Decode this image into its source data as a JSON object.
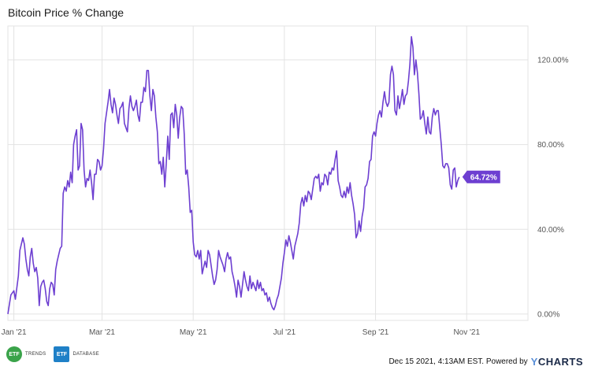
{
  "chart_data": {
    "type": "line",
    "title": "Bitcoin Price % Change",
    "x_tick_labels": [
      "Jan '21",
      "Mar '21",
      "May '21",
      "Jul '21",
      "Sep '21",
      "Nov '21"
    ],
    "x_tick_days": [
      4,
      63,
      124,
      185,
      246,
      307
    ],
    "x_range_days": [
      0,
      348
    ],
    "ylim": [
      -3,
      136
    ],
    "y_ticks": [
      0,
      40,
      80,
      120
    ],
    "y_tick_labels": [
      "0.00%",
      "40.00%",
      "80.00%",
      "120.00%"
    ],
    "grid": true,
    "series": [
      {
        "color": "#6d3fd1",
        "last_value_label": "64.72%",
        "points": [
          [
            0,
            0
          ],
          [
            2,
            9
          ],
          [
            4,
            11
          ],
          [
            5,
            7
          ],
          [
            7,
            18
          ],
          [
            8,
            30
          ],
          [
            10,
            36
          ],
          [
            11,
            33
          ],
          [
            12,
            26
          ],
          [
            13,
            21
          ],
          [
            14,
            18
          ],
          [
            15,
            27
          ],
          [
            16,
            31
          ],
          [
            17,
            24
          ],
          [
            18,
            20
          ],
          [
            19,
            22
          ],
          [
            20,
            17
          ],
          [
            21,
            4
          ],
          [
            22,
            13
          ],
          [
            23,
            15
          ],
          [
            24,
            16
          ],
          [
            25,
            12
          ],
          [
            26,
            6
          ],
          [
            27,
            4
          ],
          [
            28,
            12
          ],
          [
            29,
            15
          ],
          [
            30,
            14
          ],
          [
            31,
            9
          ],
          [
            32,
            21
          ],
          [
            33,
            25
          ],
          [
            34,
            28
          ],
          [
            35,
            31
          ],
          [
            36,
            32
          ],
          [
            37,
            57
          ],
          [
            38,
            60
          ],
          [
            39,
            58
          ],
          [
            40,
            63
          ],
          [
            41,
            60
          ],
          [
            42,
            67
          ],
          [
            43,
            62
          ],
          [
            44,
            80
          ],
          [
            45,
            84
          ],
          [
            46,
            87
          ],
          [
            47,
            68
          ],
          [
            48,
            70
          ],
          [
            49,
            90
          ],
          [
            50,
            87
          ],
          [
            51,
            68
          ],
          [
            52,
            60
          ],
          [
            53,
            64
          ],
          [
            54,
            63
          ],
          [
            55,
            68
          ],
          [
            56,
            62
          ],
          [
            57,
            54
          ],
          [
            58,
            66
          ],
          [
            59,
            66
          ],
          [
            60,
            73
          ],
          [
            61,
            72
          ],
          [
            62,
            68
          ],
          [
            63,
            70
          ],
          [
            64,
            78
          ],
          [
            65,
            90
          ],
          [
            66,
            95
          ],
          [
            67,
            100
          ],
          [
            68,
            106
          ],
          [
            69,
            99
          ],
          [
            70,
            95
          ],
          [
            71,
            102
          ],
          [
            72,
            99
          ],
          [
            73,
            94
          ],
          [
            74,
            90
          ],
          [
            75,
            97
          ],
          [
            76,
            98
          ],
          [
            77,
            100
          ],
          [
            78,
            90
          ],
          [
            79,
            88
          ],
          [
            80,
            86
          ],
          [
            81,
            97
          ],
          [
            82,
            103
          ],
          [
            83,
            98
          ],
          [
            84,
            96
          ],
          [
            85,
            98
          ],
          [
            86,
            101
          ],
          [
            87,
            94
          ],
          [
            88,
            91
          ],
          [
            89,
            100
          ],
          [
            90,
            100
          ],
          [
            91,
            107
          ],
          [
            92,
            105
          ],
          [
            93,
            115
          ],
          [
            94,
            115
          ],
          [
            95,
            103
          ],
          [
            96,
            96
          ],
          [
            97,
            106
          ],
          [
            98,
            103
          ],
          [
            99,
            93
          ],
          [
            100,
            86
          ],
          [
            101,
            71
          ],
          [
            102,
            72
          ],
          [
            103,
            66
          ],
          [
            104,
            74
          ],
          [
            105,
            60
          ],
          [
            106,
            71
          ],
          [
            107,
            84
          ],
          [
            108,
            73
          ],
          [
            109,
            94
          ],
          [
            110,
            95
          ],
          [
            111,
            88
          ],
          [
            112,
            99
          ],
          [
            113,
            94
          ],
          [
            114,
            83
          ],
          [
            115,
            93
          ],
          [
            116,
            98
          ],
          [
            117,
            97
          ],
          [
            118,
            85
          ],
          [
            119,
            66
          ],
          [
            120,
            68
          ],
          [
            121,
            60
          ],
          [
            122,
            48
          ],
          [
            123,
            49
          ],
          [
            124,
            34
          ],
          [
            125,
            28
          ],
          [
            126,
            27
          ],
          [
            127,
            30
          ],
          [
            128,
            26
          ],
          [
            129,
            30
          ],
          [
            130,
            19
          ],
          [
            131,
            22
          ],
          [
            132,
            25
          ],
          [
            133,
            22
          ],
          [
            134,
            30
          ],
          [
            135,
            28
          ],
          [
            136,
            23
          ],
          [
            137,
            18
          ],
          [
            138,
            14
          ],
          [
            139,
            16
          ],
          [
            140,
            21
          ],
          [
            141,
            30
          ],
          [
            142,
            27
          ],
          [
            143,
            25
          ],
          [
            144,
            23
          ],
          [
            145,
            20
          ],
          [
            146,
            26
          ],
          [
            147,
            29
          ],
          [
            148,
            26
          ],
          [
            149,
            27
          ],
          [
            150,
            20
          ],
          [
            151,
            17
          ],
          [
            152,
            13
          ],
          [
            153,
            8
          ],
          [
            154,
            16
          ],
          [
            155,
            13
          ],
          [
            156,
            8
          ],
          [
            157,
            14
          ],
          [
            158,
            20
          ],
          [
            159,
            16
          ],
          [
            160,
            13
          ],
          [
            161,
            11
          ],
          [
            162,
            18
          ],
          [
            163,
            12
          ],
          [
            164,
            15
          ],
          [
            165,
            13
          ],
          [
            166,
            11
          ],
          [
            167,
            16
          ],
          [
            168,
            12
          ],
          [
            169,
            15
          ],
          [
            170,
            11
          ],
          [
            171,
            12
          ],
          [
            172,
            9
          ],
          [
            173,
            10
          ],
          [
            174,
            6
          ],
          [
            175,
            8
          ],
          [
            176,
            5
          ],
          [
            177,
            3
          ],
          [
            178,
            2
          ],
          [
            179,
            4
          ],
          [
            180,
            7
          ],
          [
            181,
            9
          ],
          [
            182,
            13
          ],
          [
            183,
            17
          ],
          [
            184,
            24
          ],
          [
            185,
            29
          ],
          [
            186,
            35
          ],
          [
            187,
            32
          ],
          [
            188,
            37
          ],
          [
            189,
            34
          ],
          [
            190,
            30
          ],
          [
            191,
            26
          ],
          [
            192,
            32
          ],
          [
            193,
            35
          ],
          [
            194,
            38
          ],
          [
            195,
            43
          ],
          [
            196,
            52
          ],
          [
            197,
            55
          ],
          [
            198,
            51
          ],
          [
            199,
            56
          ],
          [
            200,
            53
          ],
          [
            201,
            58
          ],
          [
            202,
            57
          ],
          [
            203,
            54
          ],
          [
            204,
            59
          ],
          [
            205,
            64
          ],
          [
            206,
            65
          ],
          [
            207,
            64
          ],
          [
            208,
            66
          ],
          [
            209,
            58
          ],
          [
            210,
            62
          ],
          [
            211,
            61
          ],
          [
            212,
            66
          ],
          [
            213,
            65
          ],
          [
            214,
            61
          ],
          [
            215,
            67
          ],
          [
            216,
            66
          ],
          [
            217,
            69
          ],
          [
            218,
            68
          ],
          [
            219,
            73
          ],
          [
            220,
            77
          ],
          [
            221,
            63
          ],
          [
            222,
            60
          ],
          [
            223,
            56
          ],
          [
            224,
            55
          ],
          [
            225,
            58
          ],
          [
            226,
            55
          ],
          [
            227,
            60
          ],
          [
            228,
            57
          ],
          [
            229,
            62
          ],
          [
            230,
            56
          ],
          [
            231,
            52
          ],
          [
            232,
            47
          ],
          [
            233,
            36
          ],
          [
            234,
            38
          ],
          [
            235,
            44
          ],
          [
            236,
            39
          ],
          [
            237,
            46
          ],
          [
            238,
            50
          ],
          [
            239,
            60
          ],
          [
            240,
            61
          ],
          [
            241,
            64
          ],
          [
            242,
            72
          ],
          [
            243,
            73
          ],
          [
            244,
            84
          ],
          [
            245,
            86
          ],
          [
            246,
            84
          ],
          [
            247,
            90
          ],
          [
            248,
            94
          ],
          [
            249,
            96
          ],
          [
            250,
            93
          ],
          [
            251,
            100
          ],
          [
            252,
            105
          ],
          [
            253,
            100
          ],
          [
            254,
            98
          ],
          [
            255,
            100
          ],
          [
            256,
            113
          ],
          [
            257,
            117
          ],
          [
            258,
            113
          ],
          [
            259,
            96
          ],
          [
            260,
            94
          ],
          [
            261,
            103
          ],
          [
            262,
            97
          ],
          [
            263,
            101
          ],
          [
            264,
            106
          ],
          [
            265,
            99
          ],
          [
            266,
            103
          ],
          [
            267,
            104
          ],
          [
            268,
            110
          ],
          [
            269,
            118
          ],
          [
            270,
            131
          ],
          [
            271,
            126
          ],
          [
            272,
            113
          ],
          [
            273,
            120
          ],
          [
            274,
            114
          ],
          [
            275,
            104
          ],
          [
            276,
            92
          ],
          [
            277,
            93
          ],
          [
            278,
            96
          ],
          [
            279,
            90
          ],
          [
            280,
            85
          ],
          [
            281,
            93
          ],
          [
            282,
            86
          ],
          [
            283,
            85
          ],
          [
            284,
            93
          ],
          [
            285,
            97
          ],
          [
            286,
            94
          ],
          [
            287,
            96
          ],
          [
            288,
            96
          ],
          [
            289,
            88
          ],
          [
            290,
            80
          ],
          [
            291,
            70
          ],
          [
            292,
            69
          ],
          [
            293,
            71
          ],
          [
            294,
            71
          ],
          [
            295,
            69
          ],
          [
            296,
            61
          ],
          [
            297,
            59
          ],
          [
            298,
            68
          ],
          [
            299,
            69
          ],
          [
            300,
            60
          ],
          [
            301,
            63
          ],
          [
            302,
            64.72
          ]
        ]
      }
    ]
  },
  "footer": {
    "badge1": "ETF",
    "badge1_sub": "TRENDS",
    "badge2": "ETF",
    "badge2_sub": "DATABASE",
    "timestamp": "Dec 15 2021, 4:13AM EST. Powered by",
    "brand_y": "Y",
    "brand_rest": "CHARTS"
  },
  "colors": {
    "line": "#6d3fd1",
    "grid": "#e3e3e3",
    "tick_text": "#555555",
    "badge_green": "#3aa34a",
    "badge_blue": "#1f80c7"
  }
}
